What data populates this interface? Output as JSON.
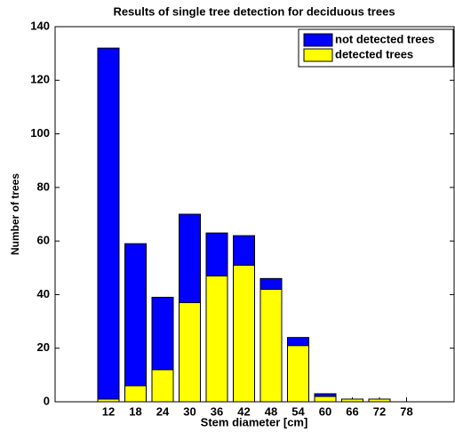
{
  "chart_data": {
    "type": "bar",
    "stacked": true,
    "title": "Results of single tree detection for deciduous trees",
    "x_label": "Stem diameter [cm]",
    "y_label": "Number of trees",
    "categories": [
      "12",
      "18",
      "24",
      "30",
      "36",
      "42",
      "48",
      "54",
      "60",
      "66",
      "72",
      "78"
    ],
    "series": [
      {
        "name": "not detected trees",
        "color": "#0000ff",
        "values": [
          131,
          53,
          27,
          33,
          16,
          11,
          4,
          3,
          1,
          0,
          0,
          0
        ]
      },
      {
        "name": "detected trees",
        "color": "#ffff00",
        "values": [
          1,
          6,
          12,
          37,
          47,
          51,
          42,
          21,
          2,
          1,
          1,
          0
        ]
      }
    ],
    "ylim": [
      0,
      140
    ],
    "yticks": [
      0,
      20,
      40,
      60,
      80,
      100,
      120,
      140
    ],
    "grid": false,
    "legend": "upper right"
  }
}
